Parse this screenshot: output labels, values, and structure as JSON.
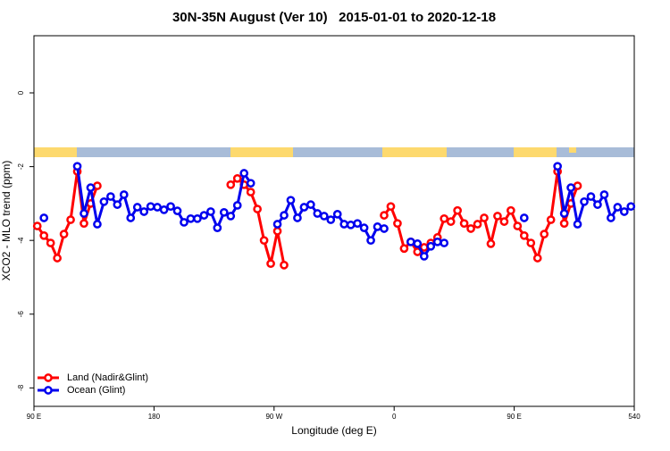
{
  "chart_data": {
    "type": "line",
    "title": "30N-35N August (Ver 10)   2015-01-01 to 2020-12-18",
    "x_label": "Longitude (deg E)",
    "y_label": "XCO2 - MLO trend (ppm)",
    "x": [
      92.5,
      97.5,
      102.5,
      107.5,
      112.5,
      117.5,
      122.5,
      127.5,
      132.5,
      137.5,
      142.5,
      147.5,
      152.5,
      157.5,
      162.5,
      167.5,
      172.5,
      177.5,
      182.5,
      187.5,
      192.5,
      197.5,
      202.5,
      207.5,
      212.5,
      217.5,
      222.5,
      227.5,
      232.5,
      237.5,
      242.5,
      247.5,
      252.5,
      257.5,
      262.5,
      267.5,
      272.5,
      277.5,
      282.5,
      287.5,
      292.5,
      297.5,
      302.5,
      307.5,
      312.5,
      317.5,
      322.5,
      327.5,
      332.5,
      337.5,
      342.5,
      347.5,
      352.5,
      357.5,
      362.5,
      367.5,
      372.5,
      377.5,
      382.5,
      387.5,
      392.5,
      397.5,
      402.5,
      407.5,
      412.5,
      417.5,
      422.5,
      427.5,
      432.5,
      437.5,
      442.5,
      447.5,
      452.5,
      457.5,
      462.5,
      467.5,
      472.5,
      477.5,
      482.5,
      487.5,
      492.5,
      497.5,
      502.5,
      507.5,
      512.5,
      517.5,
      522.5,
      527.5,
      532.5,
      537.5
    ],
    "series": [
      {
        "name": "Land (Nadir&Glint)",
        "color": "#ff0000",
        "values": [
          -3.61,
          -3.87,
          -4.07,
          -4.48,
          -3.83,
          -3.44,
          -2.13,
          -3.54,
          -3.0,
          -2.52,
          null,
          null,
          null,
          null,
          null,
          null,
          null,
          null,
          null,
          null,
          null,
          null,
          null,
          null,
          null,
          null,
          null,
          null,
          null,
          -2.49,
          -2.32,
          -2.49,
          -2.69,
          -3.15,
          -4.0,
          -4.63,
          -3.75,
          -4.67,
          null,
          null,
          null,
          null,
          null,
          null,
          null,
          null,
          null,
          null,
          null,
          null,
          null,
          null,
          -3.32,
          -3.08,
          -3.54,
          -4.22,
          -4.04,
          -4.31,
          -4.19,
          -4.07,
          -3.92,
          -3.41,
          -3.49,
          -3.19,
          -3.54,
          -3.68,
          -3.56,
          -3.39,
          -4.09,
          -3.34,
          -3.49,
          -3.19,
          -3.61,
          -3.87,
          -4.07,
          -4.48,
          -3.83,
          -3.44,
          -2.13,
          -3.54,
          -3.0,
          -2.52,
          null,
          null,
          null,
          null,
          null,
          null,
          null,
          null
        ]
      },
      {
        "name": "Ocean (Glint)",
        "color": "#0000ee",
        "values": [
          null,
          -3.39,
          null,
          null,
          null,
          null,
          -1.99,
          -3.27,
          -2.57,
          -3.56,
          -2.95,
          -2.81,
          -3.03,
          -2.76,
          -3.39,
          -3.1,
          -3.22,
          -3.08,
          -3.1,
          -3.17,
          -3.08,
          -3.2,
          -3.51,
          -3.41,
          -3.41,
          -3.32,
          -3.22,
          -3.66,
          -3.24,
          -3.34,
          -3.05,
          -2.18,
          -2.45,
          null,
          null,
          null,
          -3.56,
          -3.32,
          -2.91,
          -3.39,
          -3.1,
          -3.03,
          -3.27,
          -3.34,
          -3.44,
          -3.29,
          -3.56,
          -3.58,
          -3.54,
          -3.66,
          -4.0,
          -3.63,
          -3.68,
          null,
          null,
          null,
          -4.04,
          -4.09,
          -4.43,
          -4.16,
          -4.04,
          -4.07,
          null,
          null,
          null,
          null,
          null,
          null,
          null,
          null,
          null,
          null,
          null,
          -3.39,
          null,
          null,
          null,
          null,
          -1.99,
          -3.27,
          -2.57,
          -3.56,
          -2.95,
          -2.81,
          -3.03,
          -2.76,
          -3.39,
          -3.1,
          -3.22,
          -3.08
        ]
      }
    ],
    "xlim": [
      90,
      540
    ],
    "xticks": [
      {
        "value": 90,
        "label": "90 E"
      },
      180,
      {
        "value": 270,
        "label": "90 W"
      },
      {
        "value": 360,
        "label": "0"
      },
      {
        "value": 450,
        "label": "90 E"
      },
      540
    ],
    "ylim": [
      -8.5,
      1.55
    ],
    "yticks": [
      0,
      -2,
      -4,
      -6,
      -8
    ],
    "legend": "bottom-left"
  }
}
